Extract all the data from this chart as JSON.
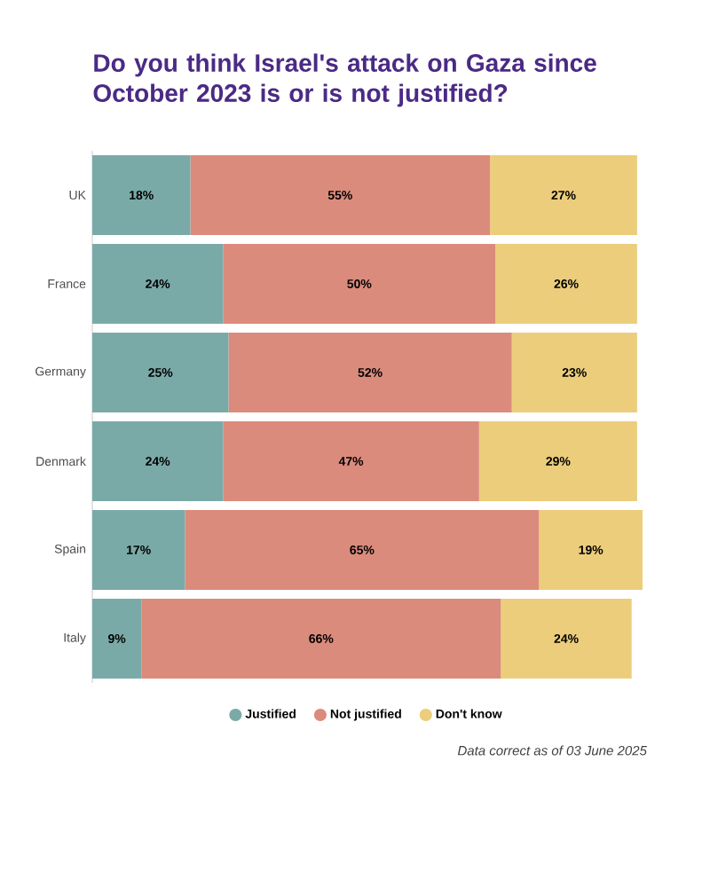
{
  "chart_data": {
    "type": "bar",
    "orientation": "horizontal",
    "stacked": true,
    "title": "Do you think Israel's attack on Gaza since October 2023 is or is not justified?",
    "categories": [
      "UK",
      "France",
      "Germany",
      "Denmark",
      "Spain",
      "Italy"
    ],
    "series": [
      {
        "name": "Justified",
        "color": "#7aaaa8",
        "values": [
          18,
          24,
          25,
          24,
          17,
          9
        ],
        "value_labels": [
          "18%",
          "24%",
          "25%",
          "24%",
          "17%",
          "9%"
        ]
      },
      {
        "name": "Not justified",
        "color": "#db8b7c",
        "values": [
          55,
          50,
          52,
          47,
          65,
          66
        ],
        "value_labels": [
          "55%",
          "50%",
          "52%",
          "47%",
          "65%",
          "66%"
        ]
      },
      {
        "name": "Don't know",
        "color": "#eccd7b",
        "values": [
          27,
          26,
          23,
          29,
          19,
          24
        ],
        "value_labels": [
          "27%",
          "26%",
          "23%",
          "29%",
          "19%",
          "24%"
        ]
      }
    ],
    "tick_labels": "y",
    "legend": "bottom",
    "grid": false,
    "annotations": [
      "Data correct as of 03 June 2025"
    ]
  }
}
